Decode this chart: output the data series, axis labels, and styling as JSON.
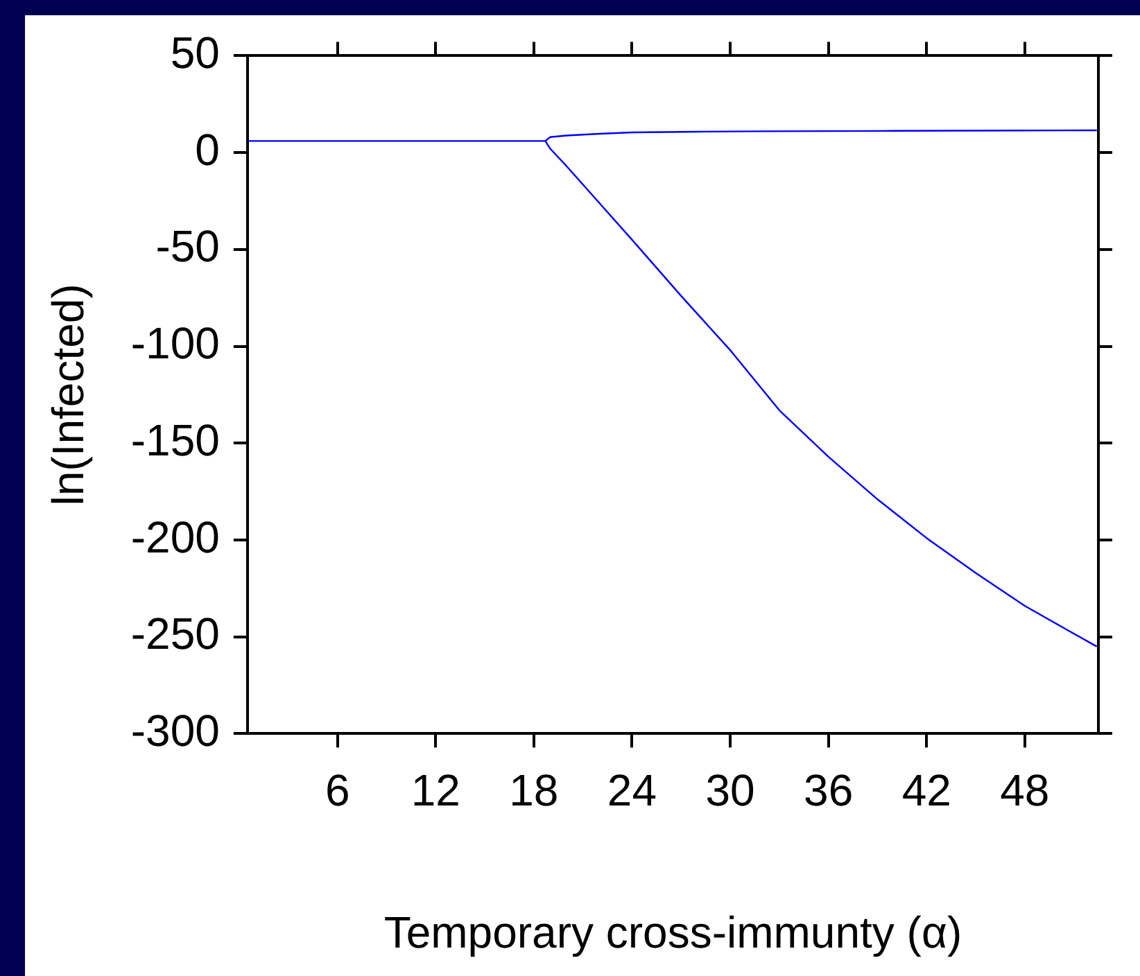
{
  "chart_data": {
    "type": "line",
    "xlabel": "Temporary cross-immunty (α)",
    "ylabel": "ln(Infected)",
    "xlim": [
      0.5,
      52.5
    ],
    "xticks": [
      6,
      12,
      18,
      24,
      30,
      36,
      42,
      48
    ],
    "ylim": [
      -300,
      50
    ],
    "yticks": [
      -300,
      -250,
      -200,
      -150,
      -100,
      -50,
      0,
      50
    ],
    "grid": false,
    "legend": false,
    "marker": "none",
    "line_style": "solid",
    "series": [
      {
        "color": "#0000ff",
        "x": [
          0.5,
          5,
          10,
          15,
          18.7,
          19,
          20,
          22,
          24,
          27,
          30,
          33,
          36,
          39,
          42,
          45,
          48,
          50.5,
          52.4
        ],
        "values": [
          6,
          6,
          6,
          6,
          6,
          2,
          -7,
          -26,
          -45,
          -74,
          -102,
          -133,
          -157,
          -179,
          -199,
          -217,
          -234,
          -246,
          -255
        ]
      },
      {
        "color": "#0000ff",
        "x": [
          18.7,
          19,
          20,
          22,
          24,
          28,
          32,
          36,
          40,
          44,
          48,
          52.4
        ],
        "values": [
          6,
          8,
          8.8,
          9.7,
          10.4,
          10.8,
          11,
          11.1,
          11.2,
          11.3,
          11.4,
          11.5
        ]
      }
    ]
  }
}
